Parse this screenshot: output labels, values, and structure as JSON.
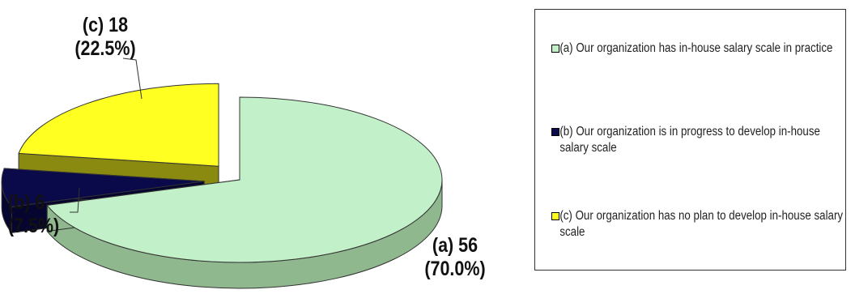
{
  "chart_data": {
    "type": "pie",
    "style": "3d-exploded",
    "series": [
      {
        "name": "",
        "categories": [
          "(a)",
          "(b)",
          "(c)"
        ],
        "values": [
          56,
          6,
          18
        ],
        "percent": [
          70.0,
          7.5,
          22.5
        ]
      }
    ],
    "slices": [
      {
        "key": "a",
        "value": 56,
        "percent": 70.0,
        "color": "#c2f0c8",
        "side_color": "#8fb88f",
        "label_line1": "(a) 56",
        "label_line2": "(70.0%)",
        "legend": "(a) Our organization  has in-house  salary scale in practice"
      },
      {
        "key": "b",
        "value": 6,
        "percent": 7.5,
        "color": "#0a0a4a",
        "side_color": "#050530",
        "label_line1": "(b) 6",
        "label_line2": "(7.5%)",
        "legend": "(b) Our organization  is in progress to develop in-house salary scale"
      },
      {
        "key": "c",
        "value": 18,
        "percent": 22.5,
        "color": "#ffff22",
        "side_color": "#8a8a10",
        "label_line1": "(c) 18",
        "label_line2": "(22.5%)",
        "legend": "(c) Our organization  has no plan to develop in-house salary scale"
      }
    ],
    "legend_position": "right",
    "title": ""
  }
}
